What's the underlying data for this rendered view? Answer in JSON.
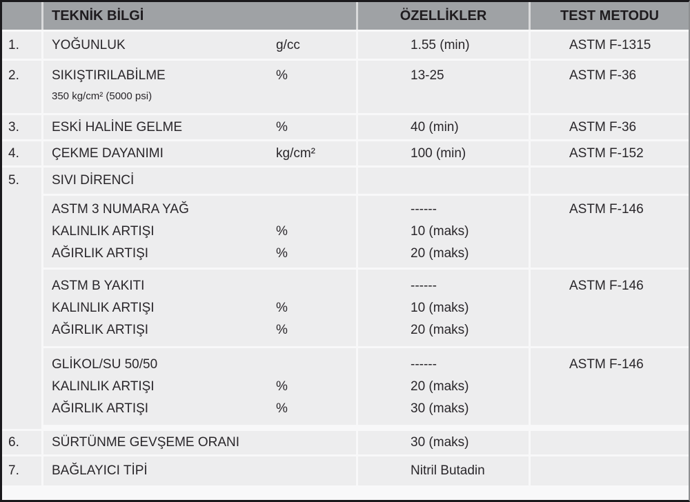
{
  "header": {
    "info": "TEKNİK BİLGİ",
    "props": "ÖZELLİKLER",
    "method": "TEST METODU"
  },
  "rows": [
    {
      "num": "1.",
      "label": "YOĞUNLUK",
      "unit": "g/cc",
      "value": "1.55 (min)",
      "method": "ASTM F-1315"
    },
    {
      "num": "2.",
      "label": "SIKIŞTIRILABİLME",
      "note": "350 kg/cm² (5000 psi)",
      "unit": "%",
      "value": "13-25",
      "method": "ASTM F-36"
    },
    {
      "num": "3.",
      "label": "ESKİ HALİNE GELME",
      "unit": "%",
      "value": "40 (min)",
      "method": "ASTM F-36"
    },
    {
      "num": "4.",
      "label": "ÇEKME DAYANIMI",
      "unit": "kg/cm²",
      "value": "100 (min)",
      "method": "ASTM F-152"
    },
    {
      "num": "5.",
      "label": "SIVI DİRENCİ",
      "subrows": [
        {
          "lines": [
            {
              "label": "ASTM 3 NUMARA YAĞ",
              "unit": ""
            },
            {
              "label": "KALINLIK ARTIŞI",
              "unit": "%"
            },
            {
              "label": "AĞIRLIK ARTIŞI",
              "unit": "%"
            }
          ],
          "values": [
            "------",
            "10 (maks)",
            "20 (maks)"
          ],
          "method": "ASTM F-146"
        },
        {
          "lines": [
            {
              "label": "ASTM B YAKITI",
              "unit": ""
            },
            {
              "label": "KALINLIK ARTIŞI",
              "unit": "%"
            },
            {
              "label": "AĞIRLIK ARTIŞI",
              "unit": "%"
            }
          ],
          "values": [
            "------",
            "10 (maks)",
            "20 (maks)"
          ],
          "method": "ASTM F-146"
        },
        {
          "lines": [
            {
              "label": "GLİKOL/SU 50/50",
              "unit": ""
            },
            {
              "label": "KALINLIK ARTIŞI",
              "unit": "%"
            },
            {
              "label": "AĞIRLIK ARTIŞI",
              "unit": "%"
            }
          ],
          "values": [
            "------",
            "20 (maks)",
            "30 (maks)"
          ],
          "method": "ASTM F-146"
        }
      ]
    },
    {
      "num": "6.",
      "label": "SÜRTÜNME GEVŞEME ORANI",
      "value": "30 (maks)",
      "method": ""
    },
    {
      "num": "7.",
      "label": "BAĞLAYICI TİPİ",
      "value": "Nitril Butadin",
      "method": ""
    }
  ],
  "colors": {
    "header_bg": "#9fa2a5",
    "row_bg": "#ededee",
    "divider": "#f8f8f9",
    "outer_border": "#1a191c",
    "text": "#29262a"
  }
}
